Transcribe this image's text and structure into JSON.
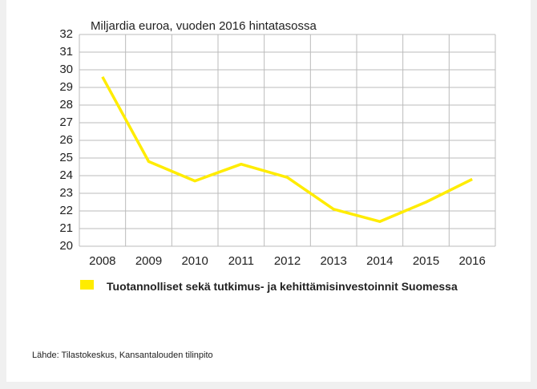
{
  "chart_data": {
    "type": "line",
    "title": "Miljardia euroa, vuoden 2016 hintatasossa",
    "categories": [
      "2008",
      "2009",
      "2010",
      "2011",
      "2012",
      "2013",
      "2014",
      "2015",
      "2016"
    ],
    "series": [
      {
        "name": "Tuotannolliset sekä tutkimus- ja kehittämisinvestoinnit Suomessa",
        "color": "#ffec00",
        "values": [
          29.6,
          24.8,
          23.7,
          24.65,
          23.9,
          22.1,
          21.4,
          22.5,
          23.8
        ]
      }
    ],
    "ylim": [
      20,
      32
    ],
    "yticks": [
      20,
      21,
      22,
      23,
      24,
      25,
      26,
      27,
      28,
      29,
      30,
      31,
      32
    ],
    "grid": true,
    "source": "Lähde: Tilastokeskus, Kansantalouden tilinpito"
  }
}
